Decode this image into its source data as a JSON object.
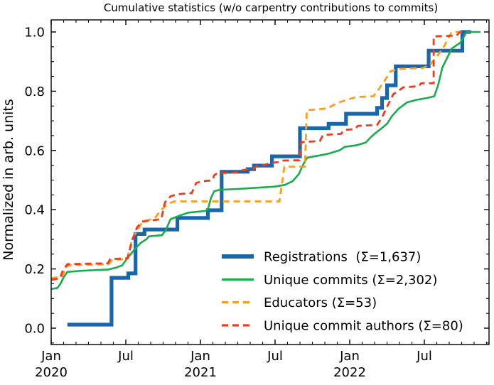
{
  "title": "Cumulative statistics (w/o carpentry contributions to commits)",
  "y_axis": {
    "label": "Normalized in arb. units",
    "tick_labels": [
      "0.0",
      "0.2",
      "0.4",
      "0.6",
      "0.8",
      "1.0"
    ],
    "tick_values": [
      0.0,
      0.2,
      0.4,
      0.6,
      0.8,
      1.0
    ],
    "minor_step": 0.05,
    "range": [
      -0.055,
      1.041
    ]
  },
  "x_axis": {
    "unit": "months since Jan 2020",
    "major_ticks": [
      {
        "month": 0,
        "label": "Jan",
        "year": "2020"
      },
      {
        "month": 6,
        "label": "Jul",
        "year": ""
      },
      {
        "month": 12,
        "label": "Jan",
        "year": "2021"
      },
      {
        "month": 18,
        "label": "Jul",
        "year": ""
      },
      {
        "month": 24,
        "label": "Jan",
        "year": "2022"
      },
      {
        "month": 30,
        "label": "Jul",
        "year": ""
      }
    ],
    "minor_step_months": 1,
    "range_months": [
      0,
      35.2
    ]
  },
  "legend": {
    "items": [
      {
        "label": "Registrations  (Σ=1,637)",
        "series": "registrations"
      },
      {
        "label": "Unique commits (Σ=2,302)",
        "series": "unique_commits"
      },
      {
        "label": "Educators (Σ=53)",
        "series": "educators"
      },
      {
        "label": "Unique commit authors (Σ=80)",
        "series": "unique_commit_authors"
      }
    ]
  },
  "chart_data": {
    "type": "line",
    "title": "Cumulative statistics (w/o carpentry contributions to commits)",
    "xlabel": "",
    "ylabel": "Normalized in arb. units",
    "x_unit": "months since Jan 2020",
    "ylim": [
      -0.055,
      1.041
    ],
    "xlim_months": [
      0,
      35.2
    ],
    "grid": false,
    "legend_position": "lower right inside, frameless",
    "series": [
      {
        "name": "Registrations",
        "total": "1,637",
        "color": "#1a66ad",
        "style": "solid-thick",
        "points": [
          [
            1.3,
            0.012
          ],
          [
            4.85,
            0.012
          ],
          [
            4.85,
            0.17
          ],
          [
            6.2,
            0.17
          ],
          [
            6.2,
            0.185
          ],
          [
            6.78,
            0.185
          ],
          [
            6.78,
            0.318
          ],
          [
            7.5,
            0.318
          ],
          [
            7.5,
            0.333
          ],
          [
            10.15,
            0.333
          ],
          [
            10.15,
            0.372
          ],
          [
            12.6,
            0.372
          ],
          [
            12.6,
            0.398
          ],
          [
            13.7,
            0.398
          ],
          [
            13.7,
            0.528
          ],
          [
            15.8,
            0.528
          ],
          [
            15.8,
            0.537
          ],
          [
            16.3,
            0.537
          ],
          [
            16.3,
            0.549
          ],
          [
            17.75,
            0.549
          ],
          [
            17.75,
            0.58
          ],
          [
            20.0,
            0.58
          ],
          [
            20.0,
            0.675
          ],
          [
            22.3,
            0.675
          ],
          [
            22.3,
            0.69
          ],
          [
            23.7,
            0.69
          ],
          [
            23.7,
            0.724
          ],
          [
            26.2,
            0.724
          ],
          [
            26.2,
            0.744
          ],
          [
            26.6,
            0.744
          ],
          [
            26.6,
            0.777
          ],
          [
            27.0,
            0.777
          ],
          [
            27.0,
            0.82
          ],
          [
            27.7,
            0.82
          ],
          [
            27.7,
            0.884
          ],
          [
            30.35,
            0.884
          ],
          [
            30.35,
            0.937
          ],
          [
            33.05,
            0.937
          ],
          [
            33.05,
            1.0
          ],
          [
            33.75,
            1.0
          ]
        ]
      },
      {
        "name": "Unique commits",
        "total": "2,302",
        "color": "#17ad4d",
        "style": "solid",
        "points": [
          [
            0,
            0.132
          ],
          [
            0.5,
            0.136
          ],
          [
            0.75,
            0.15
          ],
          [
            1.0,
            0.172
          ],
          [
            1.3,
            0.19
          ],
          [
            2.2,
            0.193
          ],
          [
            3.5,
            0.196
          ],
          [
            4.6,
            0.198
          ],
          [
            5.2,
            0.204
          ],
          [
            5.7,
            0.212
          ],
          [
            6.2,
            0.24
          ],
          [
            6.7,
            0.266
          ],
          [
            7.2,
            0.288
          ],
          [
            7.7,
            0.302
          ],
          [
            7.85,
            0.31
          ],
          [
            8.9,
            0.314
          ],
          [
            9.2,
            0.33
          ],
          [
            9.6,
            0.368
          ],
          [
            10.2,
            0.378
          ],
          [
            11.0,
            0.39
          ],
          [
            12.4,
            0.396
          ],
          [
            12.6,
            0.402
          ],
          [
            12.85,
            0.44
          ],
          [
            13.1,
            0.462
          ],
          [
            13.5,
            0.467
          ],
          [
            15.0,
            0.47
          ],
          [
            16.5,
            0.474
          ],
          [
            18.0,
            0.478
          ],
          [
            18.8,
            0.484
          ],
          [
            19.4,
            0.496
          ],
          [
            19.9,
            0.52
          ],
          [
            20.3,
            0.556
          ],
          [
            20.6,
            0.576
          ],
          [
            21.3,
            0.581
          ],
          [
            22.3,
            0.589
          ],
          [
            23.2,
            0.601
          ],
          [
            23.6,
            0.612
          ],
          [
            24.6,
            0.618
          ],
          [
            25.3,
            0.627
          ],
          [
            25.7,
            0.645
          ],
          [
            26.0,
            0.656
          ],
          [
            26.6,
            0.676
          ],
          [
            27.0,
            0.69
          ],
          [
            27.4,
            0.716
          ],
          [
            27.9,
            0.74
          ],
          [
            28.6,
            0.762
          ],
          [
            29.4,
            0.771
          ],
          [
            30.2,
            0.777
          ],
          [
            30.8,
            0.783
          ],
          [
            31.1,
            0.82
          ],
          [
            31.45,
            0.88
          ],
          [
            32.2,
            0.944
          ],
          [
            32.9,
            0.964
          ],
          [
            33.4,
            1.0
          ],
          [
            34.5,
            1.0
          ]
        ]
      },
      {
        "name": "Educators",
        "total": "53",
        "color": "#ff9e1c",
        "style": "dashed",
        "points": [
          [
            0,
            0.168
          ],
          [
            0.9,
            0.175
          ],
          [
            1.15,
            0.206
          ],
          [
            1.5,
            0.213
          ],
          [
            4.6,
            0.216
          ],
          [
            4.9,
            0.23
          ],
          [
            6.1,
            0.234
          ],
          [
            6.5,
            0.3
          ],
          [
            7.2,
            0.35
          ],
          [
            7.5,
            0.362
          ],
          [
            8.3,
            0.37
          ],
          [
            8.85,
            0.4
          ],
          [
            9.4,
            0.42
          ],
          [
            9.9,
            0.428
          ],
          [
            18.35,
            0.428
          ],
          [
            18.75,
            0.545
          ],
          [
            20.4,
            0.545
          ],
          [
            20.55,
            0.736
          ],
          [
            22.2,
            0.742
          ],
          [
            23.0,
            0.76
          ],
          [
            23.9,
            0.773
          ],
          [
            24.5,
            0.78
          ],
          [
            25.9,
            0.783
          ],
          [
            26.6,
            0.822
          ],
          [
            27.3,
            0.868
          ],
          [
            28.0,
            0.875
          ],
          [
            29.9,
            0.879
          ],
          [
            30.4,
            0.887
          ],
          [
            30.9,
            0.912
          ],
          [
            31.5,
            0.945
          ],
          [
            32.2,
            1.0
          ],
          [
            33.3,
            1.0
          ]
        ]
      },
      {
        "name": "Unique commit authors",
        "total": "80",
        "color": "#f43a1d",
        "style": "dashed",
        "points": [
          [
            0,
            0.163
          ],
          [
            0.7,
            0.168
          ],
          [
            0.95,
            0.196
          ],
          [
            1.3,
            0.216
          ],
          [
            4.55,
            0.219
          ],
          [
            4.75,
            0.233
          ],
          [
            6.15,
            0.236
          ],
          [
            6.5,
            0.296
          ],
          [
            6.9,
            0.34
          ],
          [
            7.3,
            0.36
          ],
          [
            8.85,
            0.368
          ],
          [
            9.15,
            0.425
          ],
          [
            9.6,
            0.445
          ],
          [
            10.1,
            0.452
          ],
          [
            11.3,
            0.456
          ],
          [
            11.65,
            0.49
          ],
          [
            12.1,
            0.496
          ],
          [
            12.95,
            0.499
          ],
          [
            13.1,
            0.516
          ],
          [
            13.35,
            0.523
          ],
          [
            14.9,
            0.526
          ],
          [
            15.2,
            0.533
          ],
          [
            16.2,
            0.537
          ],
          [
            16.5,
            0.547
          ],
          [
            17.3,
            0.553
          ],
          [
            17.6,
            0.558
          ],
          [
            18.4,
            0.561
          ],
          [
            18.65,
            0.566
          ],
          [
            19.95,
            0.567
          ],
          [
            20.1,
            0.628
          ],
          [
            21.6,
            0.632
          ],
          [
            21.85,
            0.652
          ],
          [
            23.3,
            0.656
          ],
          [
            23.55,
            0.669
          ],
          [
            24.4,
            0.672
          ],
          [
            24.65,
            0.683
          ],
          [
            26.2,
            0.686
          ],
          [
            26.6,
            0.712
          ],
          [
            27.1,
            0.756
          ],
          [
            27.5,
            0.79
          ],
          [
            27.9,
            0.801
          ],
          [
            28.3,
            0.813
          ],
          [
            29.55,
            0.817
          ],
          [
            29.75,
            0.827
          ],
          [
            30.75,
            0.827
          ],
          [
            30.75,
            0.985
          ],
          [
            32.6,
            0.988
          ],
          [
            32.85,
            1.0
          ],
          [
            33.3,
            1.0
          ]
        ]
      }
    ]
  },
  "colors": {
    "spine": "#000000",
    "background": "#ffffff"
  }
}
